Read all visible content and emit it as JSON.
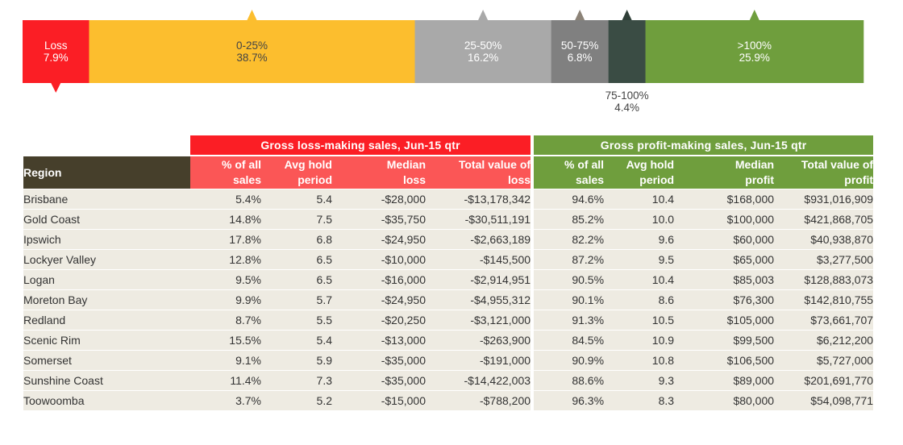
{
  "chart_data": {
    "type": "stacked-bar",
    "segments": [
      {
        "label": "Loss",
        "value": 7.9,
        "display": "7.9%",
        "color": "#fb1e25",
        "text_color": "#ffffff",
        "label_below": false,
        "marker": "below"
      },
      {
        "label": "0-25%",
        "value": 38.7,
        "display": "38.7%",
        "color": "#fcbe2e",
        "text_color": "#444444",
        "label_below": false,
        "marker": "above"
      },
      {
        "label": "25-50%",
        "value": 16.2,
        "display": "16.2%",
        "color": "#a9a9a9",
        "text_color": "#ffffff",
        "label_below": false,
        "marker": "above"
      },
      {
        "label": "50-75%",
        "value": 6.8,
        "display": "6.8%",
        "color": "#808080",
        "text_color": "#ffffff",
        "label_below": false,
        "marker": "above"
      },
      {
        "label": "75-100%",
        "value": 4.4,
        "display": "4.4%",
        "color": "#3a4c44",
        "text_color": "#444444",
        "label_below": true,
        "marker": "above"
      },
      {
        "label": ">100%",
        "value": 25.9,
        "display": "25.9%",
        "color": "#6f9e3d",
        "text_color": "#ffffff",
        "label_below": false,
        "marker": "above"
      }
    ],
    "marker_colors": [
      "#fb1e25",
      "#fcbe2e",
      "#a9a9a9",
      "#8c8378",
      "#2f3f38",
      "#6f9e3d"
    ]
  },
  "table": {
    "region_header": "Region",
    "loss_group_title": "Gross loss-making sales, Jun-15 qtr",
    "profit_group_title": "Gross profit-making sales, Jun-15 qtr",
    "loss_columns": [
      [
        "% of all",
        "sales"
      ],
      [
        "Avg hold",
        "period"
      ],
      [
        "Median",
        "loss"
      ],
      [
        "Total value of",
        "loss"
      ]
    ],
    "profit_columns": [
      [
        "% of all",
        "sales"
      ],
      [
        "Avg hold",
        "period"
      ],
      [
        "Median",
        "profit"
      ],
      [
        "Total value of",
        "profit"
      ]
    ],
    "rows": [
      [
        "Brisbane",
        "5.4%",
        "5.4",
        "-$28,000",
        "-$13,178,342",
        "94.6%",
        "10.4",
        "$168,000",
        "$931,016,909"
      ],
      [
        "Gold Coast",
        "14.8%",
        "7.5",
        "-$35,750",
        "-$30,511,191",
        "85.2%",
        "10.0",
        "$100,000",
        "$421,868,705"
      ],
      [
        "Ipswich",
        "17.8%",
        "6.8",
        "-$24,950",
        "-$2,663,189",
        "82.2%",
        "9.6",
        "$60,000",
        "$40,938,870"
      ],
      [
        "Lockyer Valley",
        "12.8%",
        "6.5",
        "-$10,000",
        "-$145,500",
        "87.2%",
        "9.5",
        "$65,000",
        "$3,277,500"
      ],
      [
        "Logan",
        "9.5%",
        "6.5",
        "-$16,000",
        "-$2,914,951",
        "90.5%",
        "10.4",
        "$85,003",
        "$128,883,073"
      ],
      [
        "Moreton Bay",
        "9.9%",
        "5.7",
        "-$24,950",
        "-$4,955,312",
        "90.1%",
        "8.6",
        "$76,300",
        "$142,810,755"
      ],
      [
        "Redland",
        "8.7%",
        "5.5",
        "-$20,250",
        "-$3,121,000",
        "91.3%",
        "10.5",
        "$105,000",
        "$73,661,707"
      ],
      [
        "Scenic Rim",
        "15.5%",
        "5.4",
        "-$13,000",
        "-$263,900",
        "84.5%",
        "10.9",
        "$99,500",
        "$6,212,200"
      ],
      [
        "Somerset",
        "9.1%",
        "5.9",
        "-$35,000",
        "-$191,000",
        "90.9%",
        "10.8",
        "$106,500",
        "$5,727,000"
      ],
      [
        "Sunshine Coast",
        "11.4%",
        "7.3",
        "-$35,000",
        "-$14,422,003",
        "88.6%",
        "9.3",
        "$89,000",
        "$201,691,770"
      ],
      [
        "Toowoomba",
        "3.7%",
        "5.2",
        "-$15,000",
        "-$788,200",
        "96.3%",
        "8.3",
        "$80,000",
        "$54,098,771"
      ]
    ]
  }
}
